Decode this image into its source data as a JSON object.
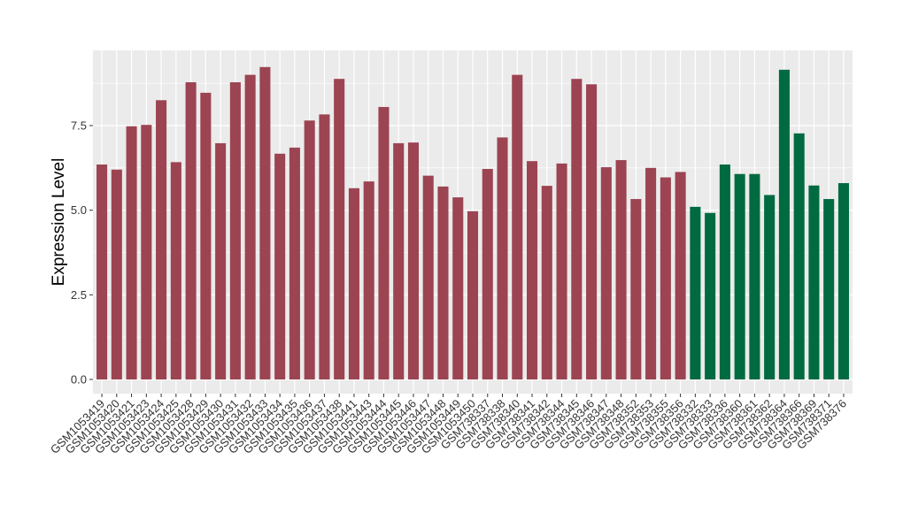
{
  "chart_data": {
    "type": "bar",
    "ylabel": "Expression Level",
    "xlabel": "",
    "ylim": [
      0,
      9.5
    ],
    "yticks": [
      0.0,
      2.5,
      5.0,
      7.5
    ],
    "ytick_labels": [
      "0.0",
      "2.5",
      "5.0",
      "7.5"
    ],
    "grid": true,
    "colors": {
      "group_a": "#9c4452",
      "group_b": "#006a40",
      "panel": "#ebebeb",
      "grid": "#ffffff"
    },
    "categories": [
      "GSM1053419",
      "GSM1053420",
      "GSM1053421",
      "GSM1053423",
      "GSM1053424",
      "GSM1053425",
      "GSM1053428",
      "GSM1053429",
      "GSM1053430",
      "GSM1053431",
      "GSM1053432",
      "GSM1053433",
      "GSM1053434",
      "GSM1053435",
      "GSM1053436",
      "GSM1053437",
      "GSM1053438",
      "GSM1053441",
      "GSM1053443",
      "GSM1053444",
      "GSM1053445",
      "GSM1053446",
      "GSM1053447",
      "GSM1053448",
      "GSM1053449",
      "GSM1053450",
      "GSM738337",
      "GSM738338",
      "GSM738340",
      "GSM738341",
      "GSM738342",
      "GSM738344",
      "GSM738345",
      "GSM738346",
      "GSM738347",
      "GSM738348",
      "GSM738352",
      "GSM738353",
      "GSM738355",
      "GSM738356",
      "GSM738332",
      "GSM738333",
      "GSM738336",
      "GSM738360",
      "GSM738361",
      "GSM738362",
      "GSM738364",
      "GSM738366",
      "GSM738369",
      "GSM738371",
      "GSM738376"
    ],
    "values": [
      6.35,
      6.2,
      7.48,
      7.52,
      8.25,
      6.42,
      8.78,
      8.47,
      6.98,
      8.78,
      9.0,
      9.23,
      6.67,
      6.85,
      7.65,
      7.83,
      8.88,
      5.65,
      5.85,
      8.05,
      6.98,
      7.0,
      6.02,
      5.7,
      5.38,
      4.97,
      6.22,
      7.15,
      9.0,
      6.45,
      5.72,
      6.38,
      8.88,
      8.72,
      6.27,
      6.48,
      5.33,
      6.25,
      5.97,
      6.13,
      5.1,
      4.92,
      6.35,
      6.07,
      6.07,
      5.45,
      9.15,
      7.27,
      5.73,
      5.33,
      5.8
    ],
    "groups": [
      "a",
      "a",
      "a",
      "a",
      "a",
      "a",
      "a",
      "a",
      "a",
      "a",
      "a",
      "a",
      "a",
      "a",
      "a",
      "a",
      "a",
      "a",
      "a",
      "a",
      "a",
      "a",
      "a",
      "a",
      "a",
      "a",
      "a",
      "a",
      "a",
      "a",
      "a",
      "a",
      "a",
      "a",
      "a",
      "a",
      "a",
      "a",
      "a",
      "a",
      "b",
      "b",
      "b",
      "b",
      "b",
      "b",
      "b",
      "b",
      "b",
      "b",
      "b"
    ]
  }
}
